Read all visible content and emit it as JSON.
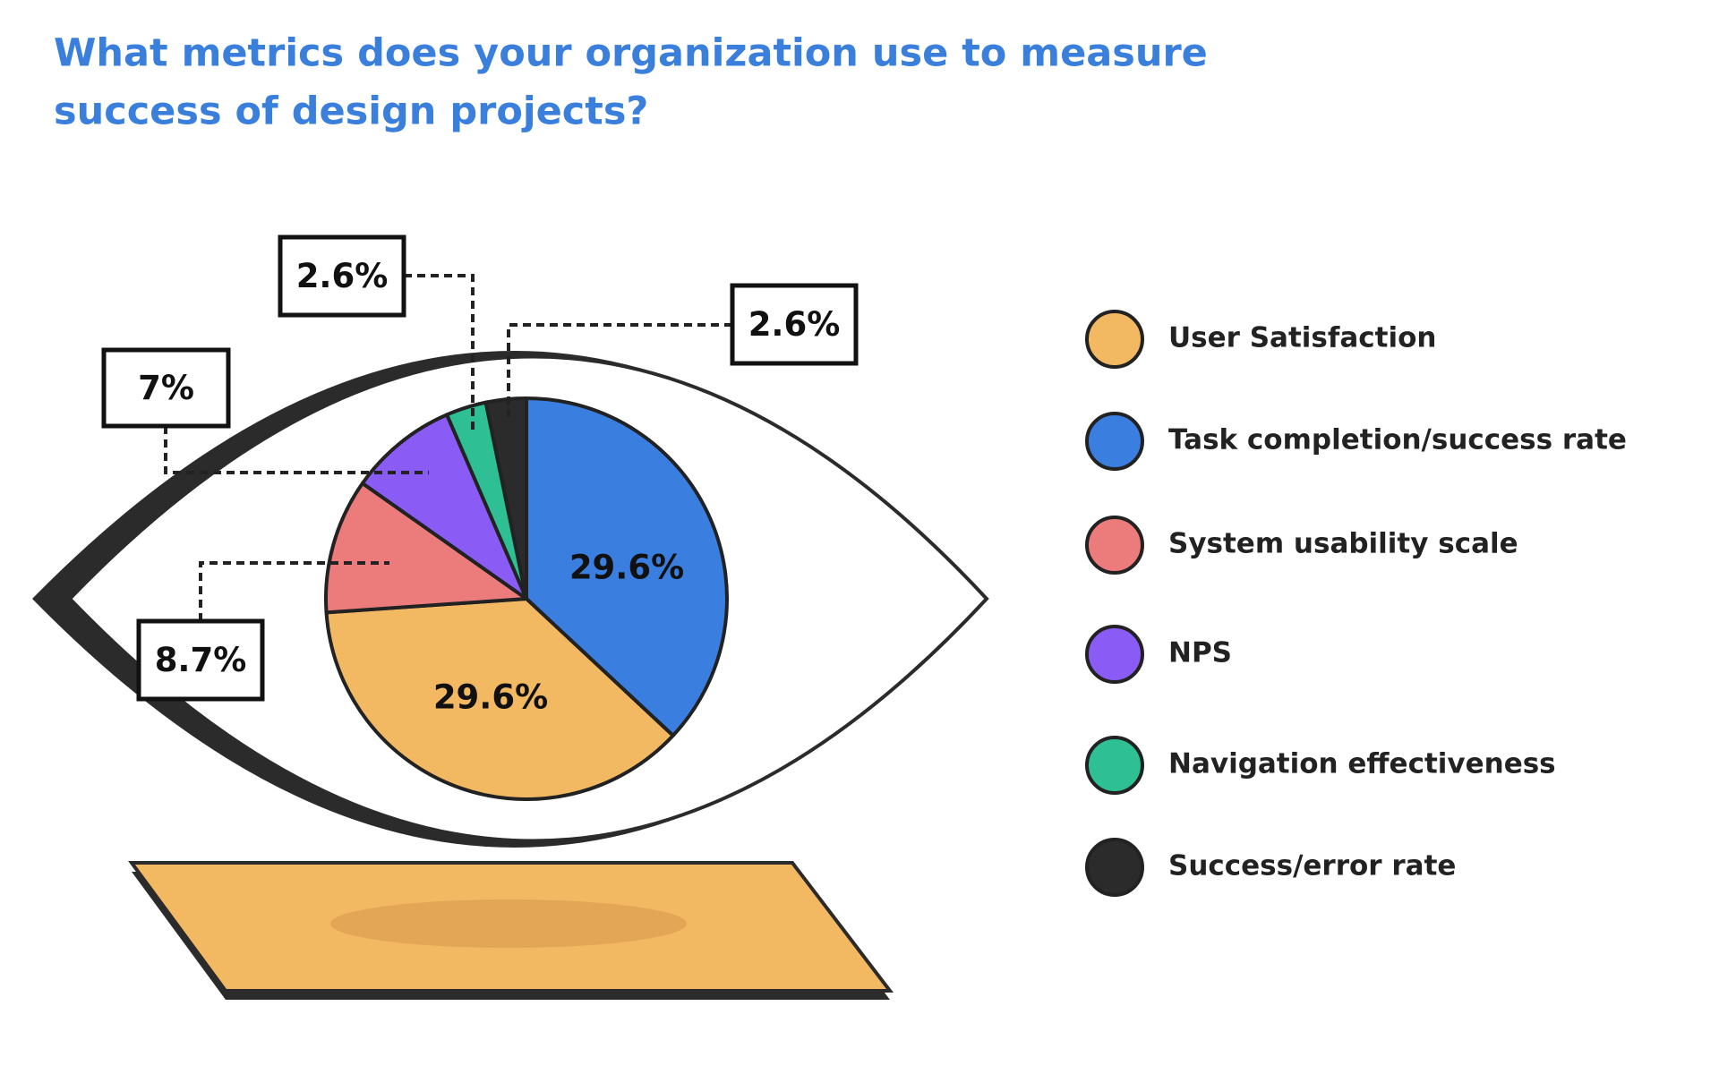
{
  "chart_data": {
    "type": "pie",
    "title": [
      "What metrics does your organization use to measure",
      "success of design projects?"
    ],
    "categories": [
      "User Satisfaction",
      "Task completion/success rate",
      "System usability scale",
      "NPS",
      "Navigation effectiveness",
      "Success/error rate"
    ],
    "values": [
      29.6,
      29.6,
      8.7,
      7,
      2.6,
      2.6
    ],
    "value_labels": [
      "29.6%",
      "29.6%",
      "8.7%",
      "7%",
      "2.6%",
      "2.6%"
    ],
    "colors": [
      "#f2b862",
      "#3a7fe0",
      "#ec7b7b",
      "#8a5cf5",
      "#2fbf95",
      "#2b2b2b"
    ]
  }
}
